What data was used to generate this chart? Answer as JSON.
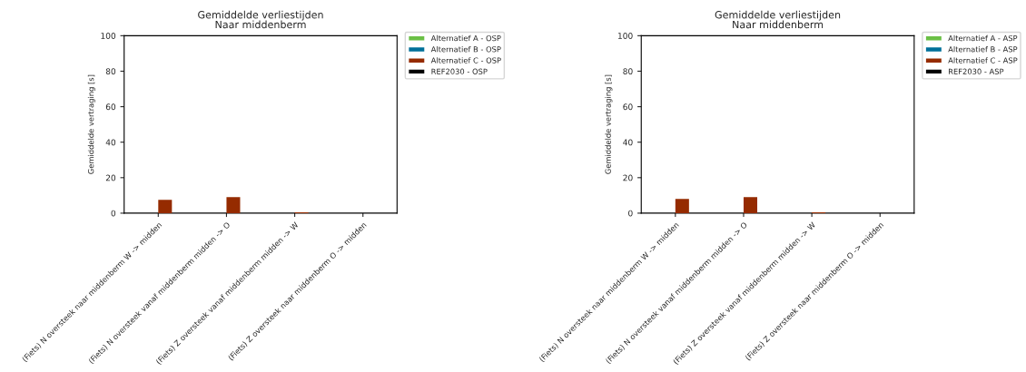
{
  "chart_data": [
    {
      "type": "bar",
      "title": "Gemiddelde verliestijden\nNaar middenberm",
      "ylabel": "Gemiddelde vertraging [s]",
      "categories": [
        "(Fiets) N oversteek naar middenberm W -> midden",
        "(Fiets) N oversteek vanaf middenberm midden -> O",
        "(Fiets) Z oversteek vanaf middenberm midden -> W",
        "(Fiets) Z oversteek naar middenberm O -> midden"
      ],
      "series": [
        {
          "name": "Alternatief A - OSP",
          "color": "#6abf45",
          "values": [
            null,
            null,
            null,
            null
          ]
        },
        {
          "name": "Alternatief B - OSP",
          "color": "#00709a",
          "values": [
            null,
            null,
            null,
            null
          ]
        },
        {
          "name": "Alternatief C - OSP",
          "color": "#952b00",
          "values": [
            7.5,
            9,
            0.5,
            null
          ]
        },
        {
          "name": "REF2030 - OSP",
          "color": "#000000",
          "values": [
            null,
            null,
            null,
            null
          ]
        }
      ],
      "ylim": [
        0,
        100
      ],
      "yticks": [
        0,
        20,
        40,
        60,
        80,
        100
      ],
      "legend": "top right",
      "grid": false
    },
    {
      "type": "bar",
      "title": "Gemiddelde verliestijden\nNaar middenberm",
      "ylabel": "Gemiddelde vertraging [s]",
      "categories": [
        "(Fiets) N oversteek naar middenberm W -> midden",
        "(Fiets) N oversteek vanaf middenberm midden -> O",
        "(Fiets) Z oversteek vanaf middenberm midden -> W",
        "(Fiets) Z oversteek naar middenberm O -> midden"
      ],
      "series": [
        {
          "name": "Alternatief A - ASP",
          "color": "#6abf45",
          "values": [
            null,
            null,
            null,
            null
          ]
        },
        {
          "name": "Alternatief B - ASP",
          "color": "#00709a",
          "values": [
            null,
            null,
            null,
            null
          ]
        },
        {
          "name": "Alternatief C - ASP",
          "color": "#952b00",
          "values": [
            8,
            9,
            0.5,
            null
          ]
        },
        {
          "name": "REF2030 - ASP",
          "color": "#000000",
          "values": [
            null,
            null,
            null,
            null
          ]
        }
      ],
      "ylim": [
        0,
        100
      ],
      "yticks": [
        0,
        20,
        40,
        60,
        80,
        100
      ],
      "legend": "top right",
      "grid": false
    }
  ]
}
